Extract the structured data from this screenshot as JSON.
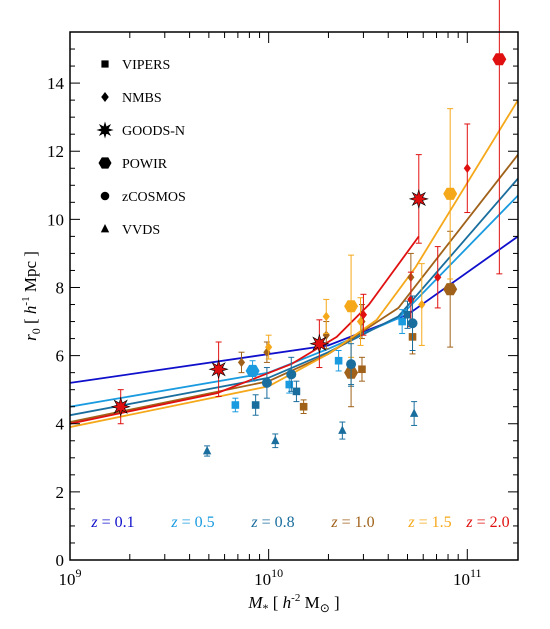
{
  "chart_data": {
    "type": "line",
    "x_scale": "log",
    "xlim": [
      1000000000.0,
      180000000000.0
    ],
    "ylim": [
      0,
      15.5
    ],
    "xlabel": {
      "main": "M",
      "sub": "*",
      "text1": " [ h",
      "sup": "-2",
      "text2": " M",
      "sun": "⊙",
      "text3": " ]"
    },
    "ylabel": {
      "main": "r",
      "sub": "0",
      "text1": " [ h",
      "sup": "-1",
      "text2": " Mpc ]"
    },
    "x_ticks": [
      {
        "value": 1000000000.0,
        "base": "10",
        "exp": "9"
      },
      {
        "value": 10000000000.0,
        "base": "10",
        "exp": "10"
      },
      {
        "value": 100000000000.0,
        "base": "10",
        "exp": "11"
      }
    ],
    "y_ticks": [
      0,
      2,
      4,
      6,
      8,
      10,
      12,
      14
    ],
    "legend": [
      {
        "label": "VIPERS",
        "marker": "square"
      },
      {
        "label": "NMBS",
        "marker": "diamond"
      },
      {
        "label": "GOODS-N",
        "marker": "star"
      },
      {
        "label": "POWIR",
        "marker": "hexagon"
      },
      {
        "label": "zCOSMOS",
        "marker": "circle"
      },
      {
        "label": "VVDS",
        "marker": "triangle"
      }
    ],
    "series": [
      {
        "name": "z = 0.1",
        "z_label": "z",
        "z_value": " = 0.1",
        "color": "#1010cc",
        "points": [
          [
            1000000000.0,
            5.2
          ],
          [
            20000000000.0,
            6.3
          ],
          [
            50000000000.0,
            7.2
          ],
          [
            180000000000.0,
            9.5
          ]
        ]
      },
      {
        "name": "z = 0.5",
        "z_label": "z",
        "z_value": " = 0.5",
        "color": "#1a9be0",
        "points": [
          [
            1000000000.0,
            4.5
          ],
          [
            10000000000.0,
            5.5
          ],
          [
            20000000000.0,
            6.2
          ],
          [
            45000000000.0,
            7.1
          ],
          [
            180000000000.0,
            10.7
          ]
        ]
      },
      {
        "name": "z = 0.8",
        "z_label": "z",
        "z_value": " = 0.8",
        "color": "#1a6e9e",
        "points": [
          [
            1000000000.0,
            4.25
          ],
          [
            10000000000.0,
            5.35
          ],
          [
            20000000000.0,
            6.1
          ],
          [
            45000000000.0,
            7.15
          ],
          [
            180000000000.0,
            11.2
          ]
        ]
      },
      {
        "name": "z = 1.0",
        "z_label": "z",
        "z_value": " = 1.0",
        "color": "#a0621a",
        "points": [
          [
            1000000000.0,
            4.05
          ],
          [
            10000000000.0,
            5.25
          ],
          [
            20000000000.0,
            6.05
          ],
          [
            45000000000.0,
            7.4
          ],
          [
            180000000000.0,
            11.9
          ]
        ]
      },
      {
        "name": "z = 1.5",
        "z_label": "z",
        "z_value": " = 1.5",
        "color": "#f5a81a",
        "points": [
          [
            1000000000.0,
            3.9
          ],
          [
            10000000000.0,
            5.1
          ],
          [
            20000000000.0,
            6.05
          ],
          [
            35000000000.0,
            7.05
          ],
          [
            55000000000.0,
            8.6
          ],
          [
            180000000000.0,
            13.5
          ]
        ]
      },
      {
        "name": "z = 2.0",
        "z_label": "z",
        "z_value": " = 2.0",
        "color": "#e01010",
        "points": [
          [
            1000000000.0,
            4.0
          ],
          [
            5500000000.0,
            4.9
          ],
          [
            13000000000.0,
            5.75
          ],
          [
            22000000000.0,
            6.55
          ],
          [
            32000000000.0,
            7.5
          ],
          [
            57000000000.0,
            9.5
          ]
        ]
      }
    ],
    "observations": [
      {
        "survey": "VVDS",
        "marker": "triangle",
        "color": "#1a6e9e",
        "x": 4900000000.0,
        "y": 3.2,
        "err": [
          0.15,
          0.15
        ]
      },
      {
        "survey": "VVDS",
        "marker": "triangle",
        "color": "#1a6e9e",
        "x": 10800000000.0,
        "y": 3.5,
        "err": [
          0.2,
          0.2
        ]
      },
      {
        "survey": "VVDS",
        "marker": "triangle",
        "color": "#1a6e9e",
        "x": 23500000000.0,
        "y": 3.8,
        "err": [
          0.25,
          0.25
        ]
      },
      {
        "survey": "VVDS",
        "marker": "triangle",
        "color": "#1a6e9e",
        "x": 54000000000.0,
        "y": 4.3,
        "err": [
          0.35,
          0.35
        ]
      },
      {
        "survey": "VIPERS",
        "marker": "square",
        "color": "#1a9be0",
        "x": 6800000000.0,
        "y": 4.55,
        "err": [
          0.2,
          0.2
        ]
      },
      {
        "survey": "VIPERS",
        "marker": "square",
        "color": "#1a9be0",
        "x": 12700000000.0,
        "y": 5.15,
        "err": [
          0.25,
          0.25
        ]
      },
      {
        "survey": "VIPERS",
        "marker": "square",
        "color": "#1a9be0",
        "x": 22500000000.0,
        "y": 5.85,
        "err": [
          0.3,
          0.3
        ]
      },
      {
        "survey": "VIPERS",
        "marker": "square",
        "color": "#1a9be0",
        "x": 47000000000.0,
        "y": 7.0,
        "err": [
          0.35,
          0.35
        ]
      },
      {
        "survey": "VIPERS",
        "marker": "square",
        "color": "#1a6e9e",
        "x": 8600000000.0,
        "y": 4.55,
        "err": [
          0.3,
          0.3
        ]
      },
      {
        "survey": "VIPERS",
        "marker": "square",
        "color": "#1a6e9e",
        "x": 13800000000.0,
        "y": 4.95,
        "err": [
          0.3,
          0.3
        ]
      },
      {
        "survey": "VIPERS",
        "marker": "square",
        "color": "#1a6e9e",
        "x": 26000000000.0,
        "y": 5.45,
        "err": [
          0.35,
          0.35
        ]
      },
      {
        "survey": "VIPERS",
        "marker": "square",
        "color": "#1a6e9e",
        "x": 50000000000.0,
        "y": 7.2,
        "err": [
          0.4,
          0.4
        ]
      },
      {
        "survey": "VIPERS",
        "marker": "square",
        "color": "#a0621a",
        "x": 15000000000.0,
        "y": 4.5,
        "err": [
          0.2,
          0.2
        ]
      },
      {
        "survey": "VIPERS",
        "marker": "square",
        "color": "#a0621a",
        "x": 29500000000.0,
        "y": 5.6,
        "err": [
          0.35,
          0.35
        ]
      },
      {
        "survey": "VIPERS",
        "marker": "square",
        "color": "#a0621a",
        "x": 53000000000.0,
        "y": 6.55,
        "err": [
          0.5,
          0.5
        ]
      },
      {
        "survey": "NMBS",
        "marker": "diamond",
        "color": "#a0621a",
        "x": 7300000000.0,
        "y": 5.8,
        "err": [
          0.3,
          0.3
        ]
      },
      {
        "survey": "NMBS",
        "marker": "diamond",
        "color": "#a0621a",
        "x": 9800000000.0,
        "y": 6.1,
        "err": [
          0.3,
          0.3
        ]
      },
      {
        "survey": "NMBS",
        "marker": "diamond",
        "color": "#a0621a",
        "x": 19500000000.0,
        "y": 6.6,
        "err": [
          0.4,
          0.4
        ]
      },
      {
        "survey": "NMBS",
        "marker": "diamond",
        "color": "#a0621a",
        "x": 29500000000.0,
        "y": 7.0,
        "err": [
          0.5,
          0.5
        ]
      },
      {
        "survey": "NMBS",
        "marker": "diamond",
        "color": "#a0621a",
        "x": 52000000000.0,
        "y": 8.3,
        "err": [
          0.7,
          0.7
        ]
      },
      {
        "survey": "NMBS",
        "marker": "diamond",
        "color": "#f5a81a",
        "x": 10000000000.0,
        "y": 6.25,
        "err": [
          0.35,
          0.35
        ]
      },
      {
        "survey": "NMBS",
        "marker": "diamond",
        "color": "#f5a81a",
        "x": 19500000000.0,
        "y": 7.15,
        "err": [
          0.5,
          0.5
        ]
      },
      {
        "survey": "NMBS",
        "marker": "diamond",
        "color": "#f5a81a",
        "x": 29000000000.0,
        "y": 7.0,
        "err": [
          0.7,
          0.7
        ]
      },
      {
        "survey": "NMBS",
        "marker": "diamond",
        "color": "#f5a81a",
        "x": 59000000000.0,
        "y": 7.5,
        "err": [
          1.2,
          1.2
        ]
      },
      {
        "survey": "NMBS",
        "marker": "diamond",
        "color": "#e01010",
        "x": 30000000000.0,
        "y": 7.2,
        "err": [
          0.6,
          0.6
        ]
      },
      {
        "survey": "NMBS",
        "marker": "diamond",
        "color": "#e01010",
        "x": 52000000000.0,
        "y": 7.65,
        "err": [
          0.8,
          0.8
        ]
      },
      {
        "survey": "NMBS",
        "marker": "diamond",
        "color": "#e01010",
        "x": 71000000000.0,
        "y": 8.3,
        "err": [
          0.9,
          0.9
        ]
      },
      {
        "survey": "NMBS",
        "marker": "diamond",
        "color": "#e01010",
        "x": 100000000000.0,
        "y": 11.5,
        "err": [
          1.3,
          1.3
        ]
      },
      {
        "survey": "GOODS-N",
        "marker": "star",
        "color": "#e01010",
        "x": 1800000000.0,
        "y": 4.5,
        "err": [
          0.5,
          0.5
        ]
      },
      {
        "survey": "GOODS-N",
        "marker": "star",
        "color": "#e01010",
        "x": 5600000000.0,
        "y": 5.6,
        "err": [
          0.8,
          0.8
        ]
      },
      {
        "survey": "GOODS-N",
        "marker": "star",
        "color": "#e01010",
        "x": 18000000000.0,
        "y": 6.35,
        "err": [
          0.7,
          0.7
        ]
      },
      {
        "survey": "GOODS-N",
        "marker": "star",
        "color": "#e01010",
        "x": 57000000000.0,
        "y": 10.6,
        "err": [
          1.3,
          1.3
        ]
      },
      {
        "survey": "POWIR",
        "marker": "hexagon",
        "color": "#1a9be0",
        "x": 8300000000.0,
        "y": 5.55,
        "err": [
          0.3,
          0.3
        ]
      },
      {
        "survey": "POWIR",
        "marker": "hexagon",
        "color": "#a0621a",
        "x": 26000000000.0,
        "y": 5.5,
        "err": [
          1.0,
          1.0
        ]
      },
      {
        "survey": "POWIR",
        "marker": "hexagon",
        "color": "#a0621a",
        "x": 82000000000.0,
        "y": 7.95,
        "err": [
          1.7,
          1.7
        ]
      },
      {
        "survey": "POWIR",
        "marker": "hexagon",
        "color": "#f5a81a",
        "x": 26000000000.0,
        "y": 7.45,
        "err": [
          1.5,
          1.5
        ]
      },
      {
        "survey": "POWIR",
        "marker": "hexagon",
        "color": "#f5a81a",
        "x": 82000000000.0,
        "y": 10.75,
        "err": [
          2.5,
          2.5
        ]
      },
      {
        "survey": "POWIR",
        "marker": "hexagon",
        "color": "#e01010",
        "x": 145000000000.0,
        "y": 14.7,
        "err": [
          6.3,
          6.3
        ]
      },
      {
        "survey": "zCOSMOS",
        "marker": "circle",
        "color": "#1a6e9e",
        "x": 9800000000.0,
        "y": 5.2,
        "err": [
          0.45,
          0.45
        ]
      },
      {
        "survey": "zCOSMOS",
        "marker": "circle",
        "color": "#1a6e9e",
        "x": 13000000000.0,
        "y": 5.45,
        "err": [
          0.5,
          0.5
        ]
      },
      {
        "survey": "zCOSMOS",
        "marker": "circle",
        "color": "#1a6e9e",
        "x": 26000000000.0,
        "y": 5.75,
        "err": [
          0.6,
          0.6
        ]
      },
      {
        "survey": "zCOSMOS",
        "marker": "circle",
        "color": "#1a6e9e",
        "x": 53000000000.0,
        "y": 6.95,
        "err": [
          0.8,
          0.8
        ]
      }
    ]
  }
}
